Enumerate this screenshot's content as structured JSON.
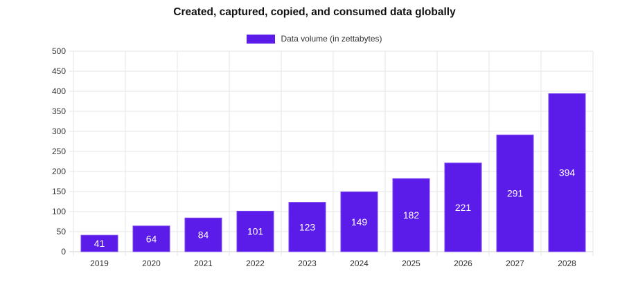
{
  "chart_data": {
    "type": "bar",
    "title": "Created, captured, copied, and consumed data globally",
    "categories": [
      "2019",
      "2020",
      "2021",
      "2022",
      "2023",
      "2024",
      "2025",
      "2026",
      "2027",
      "2028"
    ],
    "series": [
      {
        "name": "Data volume (in zettabytes)",
        "values": [
          41,
          64,
          84,
          101,
          123,
          149,
          182,
          221,
          291,
          394
        ],
        "color": "#5b1be8"
      }
    ],
    "xlabel": "",
    "ylabel": "",
    "ylim": [
      0,
      500
    ],
    "yticks": [
      "0",
      "50",
      "100",
      "150",
      "200",
      "250",
      "300",
      "350",
      "400",
      "450",
      "500"
    ],
    "grid": true,
    "legend_position": "top-center",
    "data_labels": true
  }
}
